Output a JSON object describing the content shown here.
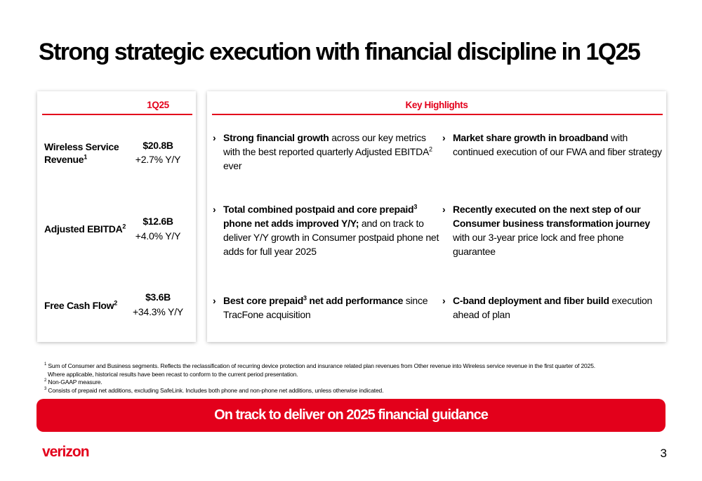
{
  "title": "Strong strategic execution with financial discipline in 1Q25",
  "left_panel": {
    "header": "1Q25",
    "metrics": [
      {
        "label": "Wireless Service Revenue",
        "footnote": "1",
        "value": "$20.8B",
        "change": "+2.7% Y/Y"
      },
      {
        "label": "Adjusted EBITDA",
        "footnote": "2",
        "value": "$12.6B",
        "change": "+4.0% Y/Y"
      },
      {
        "label": "Free Cash Flow",
        "footnote": "2",
        "value": "$3.6B",
        "change": "+34.3% Y/Y"
      }
    ]
  },
  "right_panel": {
    "header": "Key Highlights",
    "highlights": [
      {
        "bold": "Strong financial growth",
        "text": " across our key metrics with the best reported quarterly Adjusted EBITDA",
        "sup": "2",
        "tail": " ever"
      },
      {
        "bold": "Market share growth in broadband",
        "text": " with continued execution of our FWA and fiber strategy"
      },
      {
        "bold_a": "Total combined postpaid and core prepaid",
        "sup": "3",
        "bold_b": " phone net adds improved Y/Y;",
        "text": " and on track to deliver Y/Y growth in Consumer postpaid phone net adds for full year 2025"
      },
      {
        "bold": "Recently executed on the next step of our Consumer business transformation journey",
        "text": " with our 3-year price lock and free phone guarantee"
      },
      {
        "bold_a": "Best core prepaid",
        "sup": "3",
        "bold_b": " net add performance",
        "text": " since TracFone acquisition"
      },
      {
        "bold": "C-band deployment and fiber build",
        "text": " execution ahead of plan"
      }
    ],
    "chevron": "›"
  },
  "footnotes": [
    {
      "num": "1",
      "text": "Sum of Consumer and Business segments. Reflects the reclassification of recurring device protection and insurance related plan revenues from Other revenue into Wireless service revenue in the first quarter of 2025."
    },
    {
      "num": "",
      "text": "Where applicable, historical results have been recast to conform to the current period presentation."
    },
    {
      "num": "2",
      "text": "Non-GAAP measure."
    },
    {
      "num": "3",
      "text": "Consists of prepaid net additions, excluding SafeLink. Includes both phone and non-phone net additions, unless otherwise indicated."
    }
  ],
  "banner": "On track to deliver on 2025 financial guidance",
  "logo": "verizon",
  "page_number": "3",
  "colors": {
    "accent": "#e3001b",
    "text": "#000000",
    "background": "#ffffff"
  }
}
